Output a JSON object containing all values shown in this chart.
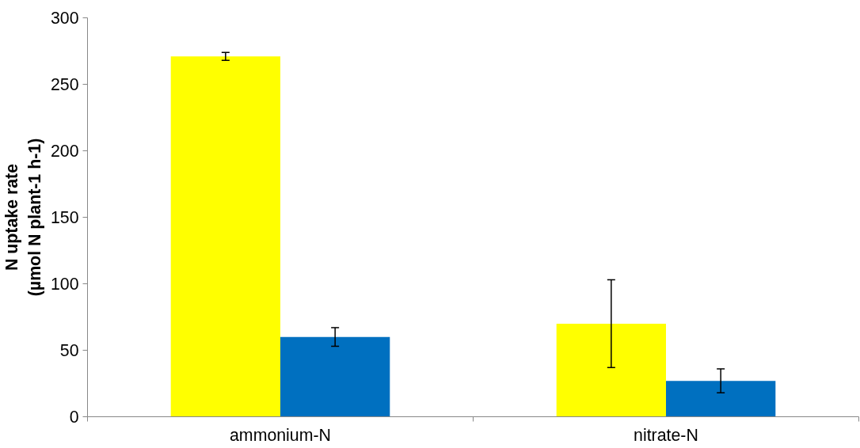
{
  "chart_data": {
    "type": "bar",
    "ylabel": "N uptake rate\n(µmol N plant-1 h-1)",
    "categories": [
      "ammonium-N",
      "nitrate-N"
    ],
    "series": [
      {
        "color": "#ffff00",
        "values": [
          271,
          70
        ],
        "errors": [
          3,
          33
        ]
      },
      {
        "color": "#0070c0",
        "values": [
          60,
          27
        ],
        "errors": [
          7,
          9
        ]
      }
    ],
    "ylim": [
      0,
      300
    ],
    "yticks": [
      0,
      50,
      100,
      150,
      200,
      250,
      300
    ],
    "grid": false
  }
}
